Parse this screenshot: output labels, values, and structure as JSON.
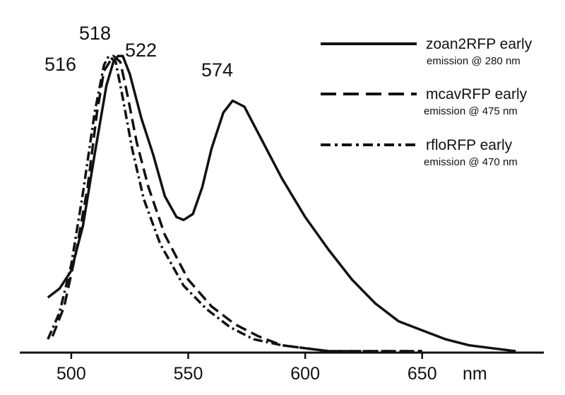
{
  "chart_data": {
    "type": "line",
    "title": "",
    "xlabel": "nm",
    "ylabel": "",
    "xlim": [
      478,
      702
    ],
    "ylim": [
      0,
      1.0
    ],
    "x_ticks": [
      {
        "value": 500,
        "label": "500"
      },
      {
        "value": 550,
        "label": "550"
      },
      {
        "value": 600,
        "label": "600"
      },
      {
        "value": 650,
        "label": "650"
      }
    ],
    "grid": false,
    "legend_position": "top-right",
    "series": [
      {
        "name": "zoan2RFP early",
        "subtitle": "emission @ 280 nm",
        "dash": "solid",
        "color": "#111111",
        "points": [
          [
            490,
            0.18
          ],
          [
            495,
            0.21
          ],
          [
            500,
            0.27
          ],
          [
            505,
            0.42
          ],
          [
            510,
            0.66
          ],
          [
            515,
            0.89
          ],
          [
            518,
            0.97
          ],
          [
            520,
            0.99
          ],
          [
            522,
            0.99
          ],
          [
            525,
            0.93
          ],
          [
            530,
            0.78
          ],
          [
            535,
            0.66
          ],
          [
            540,
            0.52
          ],
          [
            545,
            0.45
          ],
          [
            548,
            0.44
          ],
          [
            552,
            0.46
          ],
          [
            556,
            0.55
          ],
          [
            560,
            0.68
          ],
          [
            565,
            0.8
          ],
          [
            569,
            0.84
          ],
          [
            574,
            0.82
          ],
          [
            580,
            0.73
          ],
          [
            590,
            0.58
          ],
          [
            600,
            0.45
          ],
          [
            610,
            0.34
          ],
          [
            620,
            0.24
          ],
          [
            630,
            0.16
          ],
          [
            640,
            0.1
          ],
          [
            650,
            0.07
          ],
          [
            660,
            0.04
          ],
          [
            670,
            0.02
          ],
          [
            680,
            0.01
          ],
          [
            690,
            0.0
          ]
        ]
      },
      {
        "name": "mcavRFP early",
        "subtitle": "emission @ 475 nm",
        "dash": "dashed",
        "color": "#111111",
        "points": [
          [
            492,
            0.05
          ],
          [
            497,
            0.15
          ],
          [
            502,
            0.33
          ],
          [
            507,
            0.55
          ],
          [
            511,
            0.8
          ],
          [
            514,
            0.94
          ],
          [
            518,
            0.99
          ],
          [
            521,
            0.97
          ],
          [
            524,
            0.86
          ],
          [
            528,
            0.7
          ],
          [
            533,
            0.55
          ],
          [
            540,
            0.39
          ],
          [
            550,
            0.24
          ],
          [
            560,
            0.15
          ],
          [
            570,
            0.09
          ],
          [
            580,
            0.05
          ],
          [
            590,
            0.02
          ],
          [
            600,
            0.01
          ],
          [
            610,
            0.0
          ],
          [
            650,
            0.0
          ]
        ]
      },
      {
        "name": "rfloRFP early",
        "subtitle": "emission @ 470 nm",
        "dash": "dashdot",
        "color": "#111111",
        "points": [
          [
            490,
            0.04
          ],
          [
            495,
            0.13
          ],
          [
            500,
            0.29
          ],
          [
            505,
            0.53
          ],
          [
            510,
            0.8
          ],
          [
            514,
            0.96
          ],
          [
            516,
            0.99
          ],
          [
            519,
            0.97
          ],
          [
            522,
            0.85
          ],
          [
            526,
            0.68
          ],
          [
            531,
            0.51
          ],
          [
            538,
            0.36
          ],
          [
            548,
            0.22
          ],
          [
            558,
            0.14
          ],
          [
            568,
            0.08
          ],
          [
            578,
            0.04
          ],
          [
            590,
            0.02
          ],
          [
            600,
            0.01
          ],
          [
            610,
            0.0
          ],
          [
            650,
            0.0
          ]
        ]
      }
    ],
    "peak_labels": [
      {
        "label": "516",
        "x": 516,
        "y": 0.99
      },
      {
        "label": "518",
        "x": 518,
        "y": 0.99
      },
      {
        "label": "522",
        "x": 522,
        "y": 0.99
      },
      {
        "label": "574",
        "x": 574,
        "y": 0.84
      }
    ]
  }
}
